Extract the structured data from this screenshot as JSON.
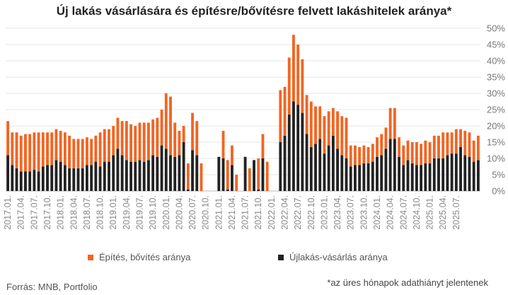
{
  "chart_data": {
    "type": "bar",
    "stacked": true,
    "title": "Új lakás vásárlására és építésre/bővítésre felvett lakáshitelek aránya*",
    "ylim": [
      0,
      50
    ],
    "yticks": [
      "0%",
      "5%",
      "10%",
      "15%",
      "20%",
      "25%",
      "30%",
      "35%",
      "40%",
      "45%",
      "50%"
    ],
    "tick_labels": [
      "2017.01.",
      "2017.04.",
      "2017.07.",
      "2017.10.",
      "2018.01.",
      "2018.04.",
      "2018.07.",
      "2018.10.",
      "2019.01.",
      "2019.04.",
      "2019.07.",
      "2019.10.",
      "2020.01.",
      "2020.04.",
      "2020.07.",
      "2020.10.",
      "2021.01.",
      "2021.04.",
      "2021.07.",
      "2021.10.",
      "2022.01.",
      "2022.04.",
      "2022.07.",
      "2022.10.",
      "2023.01.",
      "2023.04.",
      "2023.07.",
      "2023.10.",
      "2024.01.",
      "2024.04.",
      "2024.07.",
      "2024.10.",
      "2025.01.",
      "2025.04.",
      "2025.07."
    ],
    "series": [
      {
        "name": "Újlakás-vásárlás aránya",
        "color": "#222222",
        "values": [
          11.0,
          8.0,
          7.0,
          6.0,
          6.0,
          6.0,
          6.5,
          6.0,
          7.5,
          8.0,
          8.0,
          9.5,
          9.0,
          8.0,
          7.0,
          7.0,
          7.0,
          7.0,
          8.0,
          8.0,
          9.0,
          7.5,
          9.0,
          9.0,
          11.0,
          13.0,
          11.0,
          9.5,
          9.0,
          9.0,
          9.5,
          9.0,
          9.5,
          11.0,
          10.5,
          14.0,
          13.0,
          11.0,
          10.5,
          11.0,
          15.0,
          0.5,
          12.5,
          11.0,
          null,
          null,
          null,
          null,
          10.5,
          10.0,
          0.5,
          8.0,
          null,
          null,
          10.5,
          null,
          9.5,
          0.5,
          10.0,
          null,
          null,
          null,
          15.0,
          17.0,
          23.5,
          27.5,
          26.5,
          24.0,
          17.5,
          13.5,
          14.5,
          16.0,
          11.5,
          14.0,
          17.0,
          13.0,
          11.0,
          10.0,
          7.5,
          8.0,
          8.0,
          8.5,
          8.5,
          9.0,
          10.5,
          11.0,
          13.0,
          16.0,
          16.0,
          10.5,
          8.0,
          9.5,
          8.5,
          8.0,
          8.0,
          8.5,
          8.5,
          10.0,
          10.0,
          10.0,
          11.0,
          11.5,
          11.5,
          13.5,
          11.0,
          10.5,
          9.0,
          9.5
        ]
      },
      {
        "name": "Építés, bővítés aránya",
        "color": "#f26522",
        "values": [
          10.5,
          10.0,
          11.0,
          11.0,
          11.5,
          11.5,
          11.5,
          12.0,
          10.5,
          10.0,
          10.0,
          9.5,
          9.5,
          10.0,
          10.0,
          9.0,
          9.0,
          9.0,
          8.5,
          8.0,
          8.0,
          10.5,
          10.0,
          10.0,
          9.0,
          9.5,
          10.5,
          12.0,
          11.5,
          11.0,
          11.5,
          12.0,
          11.5,
          11.0,
          12.0,
          11.0,
          17.0,
          18.0,
          10.5,
          7.5,
          5.0,
          8.0,
          11.5,
          10.5,
          8.5,
          null,
          null,
          null,
          null,
          8.5,
          9.0,
          6.0,
          5.0,
          null,
          null,
          7.0,
          null,
          9.5,
          7.5,
          9.0,
          null,
          null,
          16.0,
          15.0,
          17.5,
          20.5,
          18.5,
          16.5,
          12.0,
          14.0,
          11.5,
          10.0,
          11.5,
          10.5,
          8.5,
          11.5,
          12.0,
          12.5,
          6.5,
          6.0,
          5.5,
          5.5,
          5.0,
          5.5,
          6.0,
          6.5,
          6.5,
          9.5,
          9.5,
          6.0,
          6.0,
          6.0,
          6.5,
          7.0,
          6.5,
          7.0,
          6.5,
          7.0,
          7.0,
          8.0,
          7.0,
          6.5,
          7.5,
          5.5,
          7.5,
          7.5,
          6.5,
          7.5
        ]
      }
    ]
  },
  "legend": {
    "build_label": "Építés, bővítés aránya",
    "build_color": "#f26522",
    "newhome_label": "Újlakás-vásárlás aránya",
    "newhome_color": "#222222"
  },
  "source": "Forrás: MNB, Portfolio",
  "note": "*az üres hónapok adathiányt jelentenek"
}
